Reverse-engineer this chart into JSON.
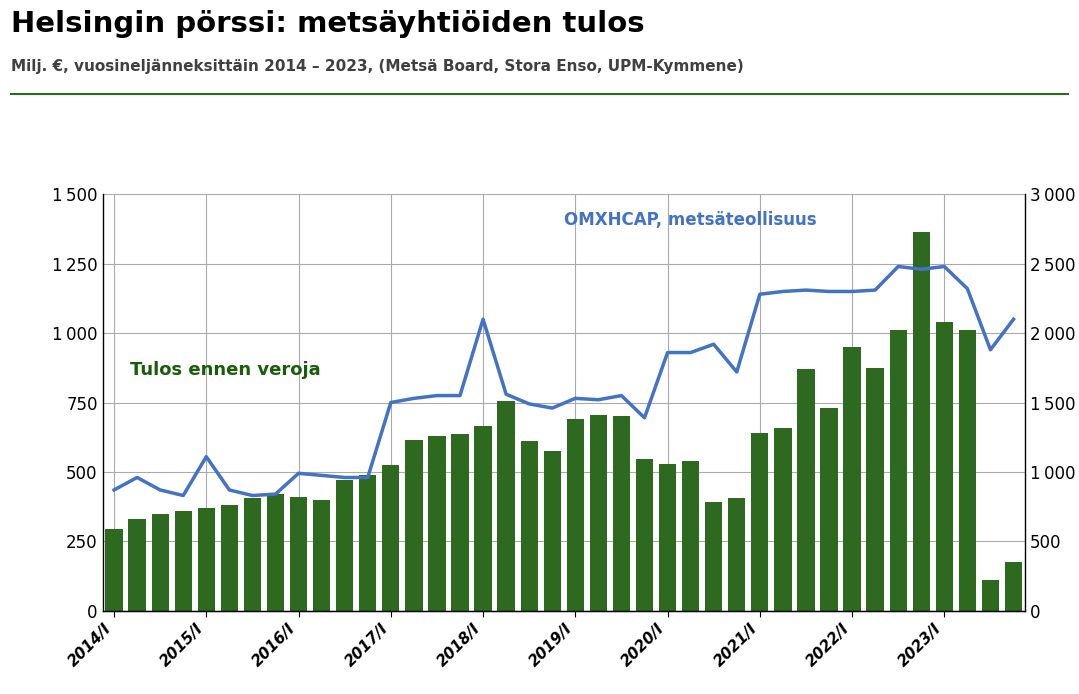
{
  "title": "Helsingin pörssi: metsäyhtiöiden tulos",
  "subtitle": "Milj. €, vuosineljänneksittäin 2014 – 2023, (Metsä Board, Stora Enso, UPM-Kymmene)",
  "bar_label": "Tulos ennen veroja",
  "line_label": "OMXHCAP, metsäteollisuus",
  "bar_color": "#2d6a1f",
  "line_color": "#4472c4",
  "x_labels": [
    "2014/I",
    "2015/I",
    "2016/I",
    "2017/I",
    "2018/I",
    "2019/I",
    "2020/I",
    "2021/I",
    "2022/I",
    "2023/I"
  ],
  "ylim_left": [
    0,
    1500
  ],
  "ylim_right": [
    0,
    3000
  ],
  "yticks_left": [
    0,
    250,
    500,
    750,
    1000,
    1250,
    1500
  ],
  "yticks_right": [
    0,
    500,
    1000,
    1500,
    2000,
    2500,
    3000
  ],
  "bar_values": [
    295,
    330,
    350,
    360,
    370,
    380,
    405,
    420,
    410,
    400,
    470,
    490,
    525,
    615,
    630,
    635,
    665,
    755,
    610,
    575,
    690,
    705,
    700,
    545,
    530,
    540,
    390,
    405,
    640,
    660,
    870,
    730,
    950,
    875,
    1010,
    1365,
    1040,
    1010,
    110,
    175
  ],
  "line_values": [
    870,
    960,
    870,
    830,
    1110,
    870,
    830,
    840,
    990,
    975,
    960,
    960,
    1500,
    1530,
    1550,
    1550,
    2100,
    1560,
    1490,
    1460,
    1530,
    1520,
    1550,
    1390,
    1860,
    1860,
    1920,
    1720,
    2280,
    2300,
    2310,
    2300,
    2300,
    2310,
    2480,
    2460,
    2480,
    2320,
    1880,
    2100
  ],
  "background_color": "#ffffff",
  "grid_color": "#aaaaaa",
  "title_color": "#000000",
  "subtitle_color": "#404040",
  "bar_label_color": "#1a5c0a",
  "line_label_color": "#4472c4"
}
